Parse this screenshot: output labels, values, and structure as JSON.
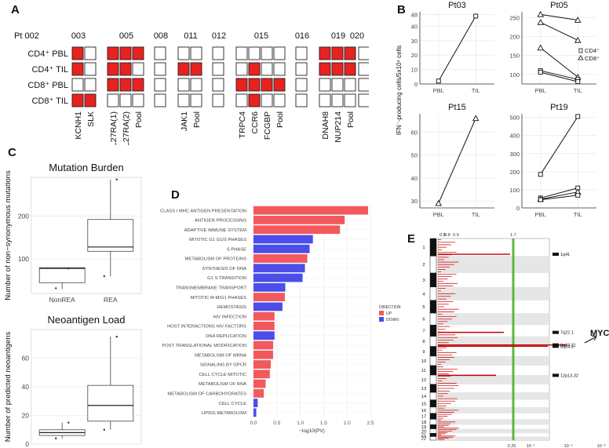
{
  "panels": {
    "A": {
      "label": "A",
      "patients": [
        "Pt 002",
        "003",
        "005",
        "008",
        "011",
        "012",
        "015",
        "016",
        "019",
        "020"
      ],
      "rows": [
        "CD4⁺ PBL",
        "CD4⁺ TIL",
        "CD8⁺ PBL",
        "CD8⁺ TIL"
      ],
      "genes": [
        {
          "patient": "003",
          "names": [
            "KCNH1",
            "SLK"
          ]
        },
        {
          "patient": "005",
          "names": [
            "IL27RA(1)",
            "IL27RA(2)",
            "Pool"
          ]
        },
        {
          "patient": "008",
          "names": []
        },
        {
          "patient": "011",
          "names": [
            "JAK1",
            "Pool"
          ]
        },
        {
          "patient": "012",
          "names": []
        },
        {
          "patient": "015",
          "names": [
            "TRPC4",
            "CCR6",
            "FCGBP",
            "Pool"
          ]
        },
        {
          "patient": "016",
          "names": []
        },
        {
          "patient": "019",
          "names": [
            "DNAH8",
            "NUP214",
            "Pool"
          ]
        },
        {
          "patient": "020",
          "names": []
        }
      ],
      "filled": {
        "003": [
          [
            1,
            0
          ],
          [
            1,
            0
          ],
          [
            0,
            0
          ],
          [
            1,
            1
          ]
        ],
        "005": [
          [
            1,
            1,
            1
          ],
          [
            1,
            1,
            0
          ],
          [
            1,
            1,
            1
          ],
          [
            0,
            0,
            0
          ]
        ],
        "008": [
          [
            0
          ],
          [
            0
          ],
          [
            0
          ],
          [
            0
          ]
        ],
        "011": [
          [
            0,
            0
          ],
          [
            1,
            1
          ],
          [
            0,
            0
          ],
          [
            0,
            0
          ]
        ],
        "012": [
          [
            0
          ],
          [
            0
          ],
          [
            0
          ],
          [
            0
          ]
        ],
        "015": [
          [
            0,
            0,
            0,
            0
          ],
          [
            0,
            1,
            0,
            0
          ],
          [
            1,
            1,
            1,
            1
          ],
          [
            0,
            1,
            0,
            0
          ]
        ],
        "016": [
          [
            0
          ],
          [
            0
          ],
          [
            0
          ],
          [
            0
          ]
        ],
        "019": [
          [
            1,
            1,
            1
          ],
          [
            1,
            1,
            1
          ],
          [
            0,
            0,
            0
          ],
          [
            0,
            0,
            0
          ]
        ],
        "020": [
          [
            0
          ],
          [
            0
          ],
          [
            0
          ],
          [
            0
          ]
        ]
      },
      "fill_color": "#e8221f"
    },
    "B": {
      "label": "B",
      "ylabel": "IFN⁻-producing cells/5x10⁴ cells",
      "legend": [
        "CD4⁺",
        "CD8⁺"
      ]
    },
    "C": {
      "label": "C",
      "ylabel1": "Number of non−synonymous mutations",
      "ylabel2": "Number of predicted neoantigens"
    },
    "D": {
      "label": "D"
    },
    "E": {
      "label": "E",
      "annotation": "MYC",
      "top_ticks": [
        "0.8",
        "0.8",
        "0.9",
        "1.7"
      ],
      "bottom_ticks": [
        "0.25",
        "10⁻¹",
        "10⁻²",
        "10⁻³"
      ]
    }
  },
  "chart_data": [
    {
      "id": "B-Pt03",
      "type": "line",
      "title": "Pt03",
      "categories": [
        "PBL",
        "TIL"
      ],
      "ylim": [
        0,
        50
      ],
      "yticks": [
        0,
        10,
        20,
        30,
        40,
        48
      ],
      "series": [
        {
          "name": "CD4+",
          "marker": "square",
          "values": [
            2,
            47
          ]
        }
      ]
    },
    {
      "id": "B-Pt05",
      "type": "line",
      "title": "Pt05",
      "categories": [
        "PBL",
        "TIL"
      ],
      "ylim": [
        75,
        265
      ],
      "yticks": [
        100,
        150,
        200,
        250
      ],
      "legend": [
        "CD4⁺",
        "CD8⁺"
      ],
      "series": [
        {
          "name": "CD8+ a",
          "marker": "triangle",
          "values": [
            258,
            243
          ]
        },
        {
          "name": "CD8+ b",
          "marker": "triangle",
          "values": [
            237,
            190
          ]
        },
        {
          "name": "CD8+ c",
          "marker": "triangle",
          "values": [
            170,
            93
          ]
        },
        {
          "name": "CD4+ a",
          "marker": "square",
          "values": [
            110,
            87
          ]
        },
        {
          "name": "CD4+ b",
          "marker": "square",
          "values": [
            106,
            81
          ]
        }
      ]
    },
    {
      "id": "B-Pt15",
      "type": "line",
      "title": "Pt15",
      "categories": [
        "PBL",
        "TIL"
      ],
      "ylim": [
        27,
        68
      ],
      "yticks": [
        30,
        40,
        50,
        60
      ],
      "series": [
        {
          "name": "CD8+",
          "marker": "triangle",
          "values": [
            29,
            66
          ]
        }
      ]
    },
    {
      "id": "B-Pt19",
      "type": "line",
      "title": "Pt19",
      "categories": [
        "PBL",
        "TIL"
      ],
      "ylim": [
        0,
        520
      ],
      "yticks": [
        0,
        100,
        200,
        300,
        400,
        500
      ],
      "series": [
        {
          "name": "CD4+ a",
          "marker": "square",
          "values": [
            185,
            505
          ]
        },
        {
          "name": "CD4+ b",
          "marker": "square",
          "values": [
            55,
            110
          ]
        },
        {
          "name": "CD8+ a",
          "marker": "triangle",
          "values": [
            48,
            88
          ]
        },
        {
          "name": "CD4+ c",
          "marker": "square",
          "values": [
            45,
            70
          ]
        }
      ]
    },
    {
      "id": "C-mutation",
      "type": "box",
      "title": "Mutation Burden",
      "ylabel": "Number of non−synonymous mutations",
      "categories": [
        "NonREA",
        "REA"
      ],
      "yticks": [
        100,
        200
      ],
      "ylim": [
        20,
        290
      ],
      "boxes": [
        {
          "min": 30,
          "q1": 45,
          "median": 78,
          "q3": 80,
          "max": 80,
          "points": [
            32,
            78
          ]
        },
        {
          "min": 60,
          "q1": 118,
          "median": 128,
          "q3": 192,
          "max": 285,
          "points": [
            60,
            285
          ]
        }
      ]
    },
    {
      "id": "C-neoantigen",
      "type": "box",
      "title": "Neoantigen Load",
      "ylabel": "Number of predicted neoantigens",
      "categories": [
        "NonREA",
        "REA"
      ],
      "yticks": [
        0,
        20,
        40,
        60
      ],
      "ylim": [
        0,
        80
      ],
      "boxes": [
        {
          "min": 4,
          "q1": 6,
          "median": 8,
          "q3": 10,
          "max": 15,
          "points": [
            4,
            15
          ]
        },
        {
          "min": 10,
          "q1": 16,
          "median": 27,
          "q3": 41,
          "max": 75,
          "points": [
            10,
            75
          ]
        }
      ]
    },
    {
      "id": "D-pathways",
      "type": "bar",
      "orientation": "horizontal",
      "xlabel": "−log10(PV)",
      "xticks": [
        0.0,
        0.5,
        1.0,
        1.5,
        2.0,
        2.5
      ],
      "xlim": [
        -0.05,
        2.55
      ],
      "legend_title": "DIRECTION",
      "legend": [
        "UP",
        "DOWN"
      ],
      "colors": {
        "UP": "#f1595d",
        "DOWN": "#4b4ee8"
      },
      "categories": [
        "CLASS I MHC ANTIGEN PRESENTATION",
        "ANTIGEN PROCESSING",
        "ADAPTIVE IMMUNE SYSTEM",
        "MITOTIC G1 G1/S PHASES",
        "S PHASE",
        "METABOLISM OF PROTEINS",
        "SYNTHESIS OF DNA",
        "G1 S TRANSITION",
        "TRANSMEMBRANE TRANSPORT",
        "MITOTIC M-M/G1 PHASES",
        "HEMOSTASIS",
        "HIV INFECTION",
        "HOST INTERACTIONS HIV FACTORS",
        "DNA REPLICATION",
        "POST TRANSLATIONAL MODIFICATION",
        "METABOLISM OF MRNA",
        "SIGNALING BY GPCR",
        "CELL CYCLE MITOTIC",
        "METABOLISM OF RNA",
        "METABOLISM OF CARBOHYDRATES",
        "CELL CYCLE",
        "LIPIDS METABOLISM"
      ],
      "values": [
        2.45,
        1.95,
        1.85,
        1.27,
        1.2,
        1.15,
        1.1,
        1.05,
        0.68,
        0.67,
        0.62,
        0.45,
        0.45,
        0.45,
        0.42,
        0.42,
        0.37,
        0.35,
        0.26,
        0.22,
        0.09,
        0.06
      ],
      "direction": [
        "UP",
        "UP",
        "UP",
        "DOWN",
        "DOWN",
        "UP",
        "DOWN",
        "DOWN",
        "DOWN",
        "UP",
        "DOWN",
        "UP",
        "UP",
        "DOWN",
        "UP",
        "UP",
        "UP",
        "UP",
        "UP",
        "UP",
        "DOWN",
        "DOWN"
      ]
    },
    {
      "id": "E-gistic",
      "type": "genome",
      "chromosomes": [
        "1",
        "2",
        "3",
        "4",
        "5",
        "6",
        "7",
        "8",
        "9",
        "10",
        "11",
        "12",
        "13",
        "14",
        "15",
        "16",
        "17",
        "18",
        "19",
        "20",
        "21",
        "22"
      ],
      "chrom_sizes": [
        249,
        243,
        198,
        191,
        181,
        171,
        159,
        145,
        138,
        134,
        135,
        133,
        114,
        107,
        102,
        90,
        83,
        78,
        59,
        63,
        47,
        51
      ],
      "threshold": 1.7,
      "peaks": [
        {
          "label": "1q41",
          "chrom": "1",
          "pos": 0.9
        },
        {
          "label": "7q22.1",
          "chrom": "7",
          "pos": 0.65
        },
        {
          "label": "8q24.21",
          "chrom": "8",
          "pos": 0.85
        },
        {
          "label": "8q24.3",
          "chrom": "8",
          "pos": 0.98
        },
        {
          "label": "12p13.32",
          "chrom": "12",
          "pos": 0.03
        }
      ]
    }
  ]
}
